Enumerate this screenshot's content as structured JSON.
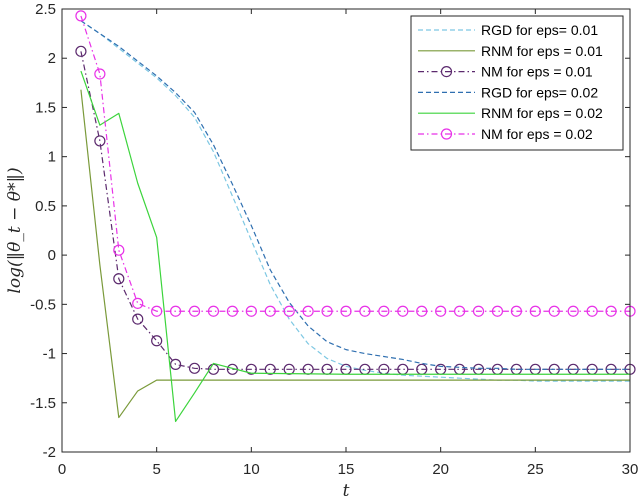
{
  "chart_data": {
    "type": "line",
    "title": "",
    "xlabel": "t",
    "ylabel": "log(‖θ_t − θ*‖)",
    "xlim": [
      0,
      30
    ],
    "ylim": [
      -2,
      2.5
    ],
    "x_ticks": [
      "0",
      "5",
      "10",
      "15",
      "20",
      "25",
      "30"
    ],
    "y_ticks": [
      "-2",
      "-1.5",
      "-1",
      "-0.5",
      "0",
      "0.5",
      "1",
      "1.5",
      "2",
      "2.5"
    ],
    "grid": false,
    "legend_position": "top-right",
    "series": [
      {
        "name": "RGD for eps= 0.01",
        "color": "#7ec8e3",
        "style": "dashed",
        "marker": "none",
        "x": [
          1,
          2,
          3,
          4,
          5,
          6,
          7,
          8,
          9,
          10,
          11,
          12,
          13,
          14,
          15,
          16,
          17,
          18,
          19,
          20,
          21,
          22,
          23,
          24,
          25,
          26,
          27,
          28,
          29,
          30
        ],
        "y": [
          2.38,
          2.25,
          2.1,
          1.95,
          1.8,
          1.62,
          1.4,
          1.05,
          0.6,
          0.15,
          -0.3,
          -0.65,
          -0.9,
          -1.05,
          -1.13,
          -1.17,
          -1.2,
          -1.22,
          -1.23,
          -1.24,
          -1.25,
          -1.26,
          -1.27,
          -1.27,
          -1.28,
          -1.28,
          -1.28,
          -1.28,
          -1.28,
          -1.28
        ]
      },
      {
        "name": "RNM for eps = 0.01",
        "color": "#7a9a3a",
        "style": "solid",
        "marker": "none",
        "x": [
          1,
          2,
          3,
          4,
          5,
          6,
          7,
          8,
          10,
          15,
          20,
          25,
          30
        ],
        "y": [
          1.68,
          -0.1,
          -1.65,
          -1.38,
          -1.27,
          -1.27,
          -1.27,
          -1.27,
          -1.27,
          -1.27,
          -1.27,
          -1.27,
          -1.27
        ]
      },
      {
        "name": "NM for eps = 0.01",
        "color": "#5c2a6e",
        "style": "dashdot",
        "marker": "circle",
        "x": [
          1,
          2,
          3,
          4,
          5,
          6,
          7,
          8,
          9,
          10,
          11,
          12,
          13,
          14,
          15,
          16,
          17,
          18,
          19,
          20,
          21,
          22,
          23,
          24,
          25,
          26,
          27,
          28,
          29,
          30
        ],
        "y": [
          2.07,
          1.16,
          -0.24,
          -0.65,
          -0.87,
          -1.11,
          -1.15,
          -1.16,
          -1.16,
          -1.16,
          -1.16,
          -1.16,
          -1.16,
          -1.16,
          -1.16,
          -1.16,
          -1.16,
          -1.16,
          -1.16,
          -1.16,
          -1.16,
          -1.16,
          -1.16,
          -1.16,
          -1.16,
          -1.16,
          -1.16,
          -1.16,
          -1.16,
          -1.16
        ]
      },
      {
        "name": "RGD for eps= 0.02",
        "color": "#2f6fb0",
        "style": "dashed",
        "marker": "none",
        "x": [
          1,
          2,
          3,
          4,
          5,
          6,
          7,
          8,
          9,
          10,
          11,
          12,
          13,
          14,
          15,
          16,
          17,
          18,
          19,
          20,
          21,
          22,
          23,
          24,
          25,
          26,
          27,
          28,
          29,
          30
        ],
        "y": [
          2.38,
          2.25,
          2.12,
          1.97,
          1.82,
          1.65,
          1.45,
          1.12,
          0.72,
          0.3,
          -0.15,
          -0.48,
          -0.72,
          -0.88,
          -0.96,
          -1.0,
          -1.03,
          -1.06,
          -1.1,
          -1.13,
          -1.14,
          -1.15,
          -1.15,
          -1.16,
          -1.16,
          -1.16,
          -1.16,
          -1.16,
          -1.16,
          -1.16
        ]
      },
      {
        "name": "RNM for eps = 0.02",
        "color": "#3cd43c",
        "style": "solid",
        "marker": "none",
        "x": [
          1,
          2,
          3,
          4,
          5,
          6,
          7,
          8,
          10,
          15,
          20,
          25,
          30
        ],
        "y": [
          1.87,
          1.32,
          1.44,
          0.73,
          0.18,
          -1.69,
          -1.4,
          -1.1,
          -1.2,
          -1.21,
          -1.21,
          -1.21,
          -1.21
        ]
      },
      {
        "name": "NM for eps = 0.02",
        "color": "#e832e8",
        "style": "dashdot",
        "marker": "circle",
        "x": [
          1,
          2,
          3,
          4,
          5,
          6,
          7,
          8,
          9,
          10,
          11,
          12,
          13,
          14,
          15,
          16,
          17,
          18,
          19,
          20,
          21,
          22,
          23,
          24,
          25,
          26,
          27,
          28,
          29,
          30
        ],
        "y": [
          2.43,
          1.84,
          0.05,
          -0.49,
          -0.57,
          -0.57,
          -0.57,
          -0.57,
          -0.57,
          -0.57,
          -0.57,
          -0.57,
          -0.57,
          -0.57,
          -0.57,
          -0.57,
          -0.57,
          -0.57,
          -0.57,
          -0.57,
          -0.57,
          -0.57,
          -0.57,
          -0.57,
          -0.57,
          -0.57,
          -0.57,
          -0.57,
          -0.57,
          -0.57
        ]
      }
    ]
  }
}
